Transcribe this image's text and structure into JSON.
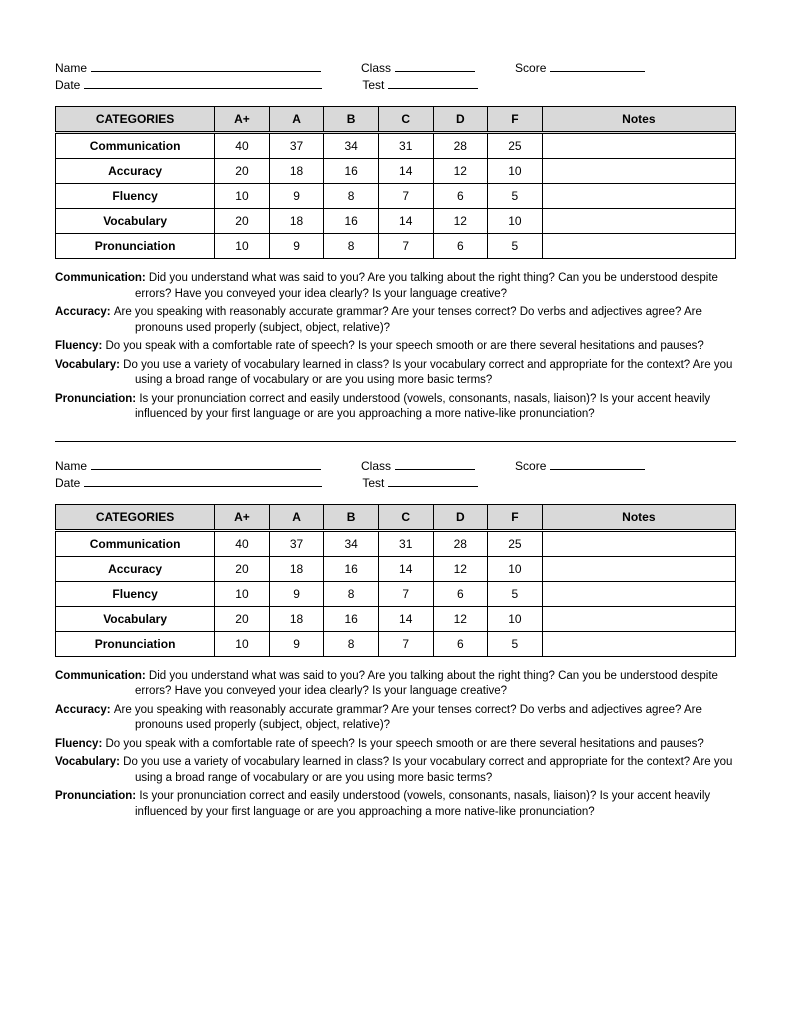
{
  "form": {
    "name_label": "Name",
    "class_label": "Class",
    "score_label": "Score",
    "date_label": "Date",
    "test_label": "Test"
  },
  "table": {
    "headers": {
      "categories": "CATEGORIES",
      "a_plus": "A+",
      "a": "A",
      "b": "B",
      "c": "C",
      "d": "D",
      "f": "F",
      "notes": "Notes"
    },
    "rows": [
      {
        "label": "Communication",
        "scores": [
          "40",
          "37",
          "34",
          "31",
          "28",
          "25"
        ]
      },
      {
        "label": "Accuracy",
        "scores": [
          "20",
          "18",
          "16",
          "14",
          "12",
          "10"
        ]
      },
      {
        "label": "Fluency",
        "scores": [
          "10",
          "9",
          "8",
          "7",
          "6",
          "5"
        ]
      },
      {
        "label": "Vocabulary",
        "scores": [
          "20",
          "18",
          "16",
          "14",
          "12",
          "10"
        ]
      },
      {
        "label": "Pronunciation",
        "scores": [
          "10",
          "9",
          "8",
          "7",
          "6",
          "5"
        ]
      }
    ]
  },
  "definitions": [
    {
      "term": "Communication:",
      "text": "Did you understand what was said to you? Are you talking about the right thing? Can you be understood despite errors? Have you conveyed your idea clearly? Is your language creative?"
    },
    {
      "term": "Accuracy:",
      "text": "Are you speaking with reasonably accurate grammar? Are your tenses correct? Do verbs and adjectives agree? Are pronouns used properly (subject, object, relative)?"
    },
    {
      "term": "Fluency:",
      "text": "Do you speak with a comfortable rate of speech? Is your speech smooth or are there several hesitations and pauses?"
    },
    {
      "term": "Vocabulary:",
      "text": "Do you use a variety of vocabulary learned in class? Is your vocabulary correct and appropriate for the context?  Are you using a broad range of vocabulary or are you using more basic terms?"
    },
    {
      "term": "Pronunciation:",
      "text": "Is your pronunciation correct and easily understood (vowels, consonants, nasals, liaison)? Is your accent heavily influenced by your first language or are you approaching a more native-like pronunciation?"
    }
  ]
}
